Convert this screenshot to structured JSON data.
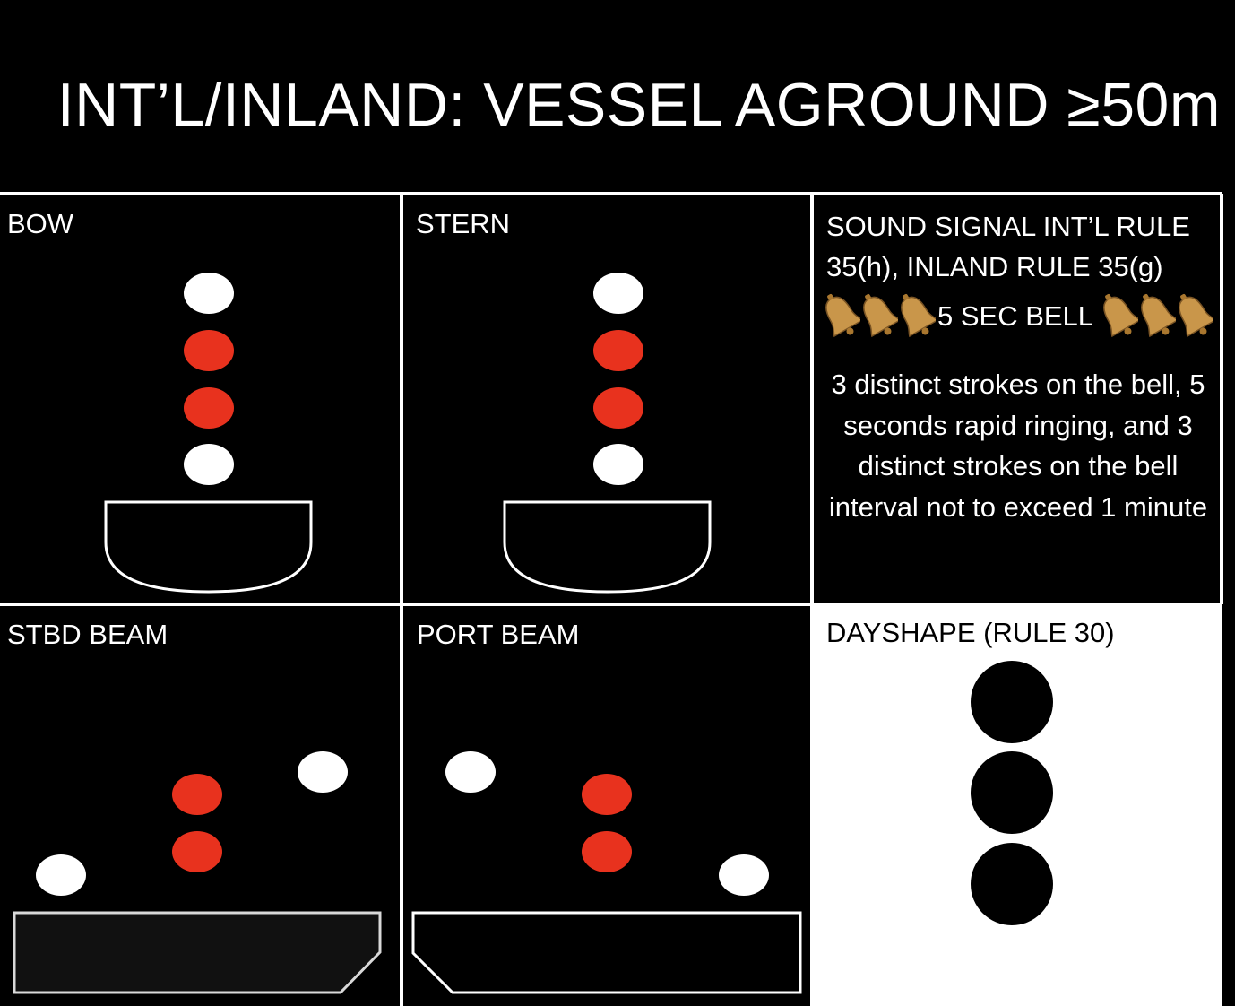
{
  "title": "INT’L/INLAND: VESSEL AGROUND ≥50m",
  "colors": {
    "background": "#000000",
    "white_light": "#ffffff",
    "red_light": "#e8321e",
    "panel_border": "#ffffff",
    "dayshape_panel": "#ffffff",
    "dayshape_ball": "#000000",
    "bell": "#c9964a"
  },
  "panels": {
    "bow": {
      "label": "BOW"
    },
    "stern": {
      "label": "STERN"
    },
    "stbd_beam": {
      "label": "STBD BEAM"
    },
    "port_beam": {
      "label": "PORT BEAM"
    }
  },
  "sound_signal": {
    "heading": "SOUND SIGNAL INT’L RULE 35(h), INLAND RULE 35(g)",
    "bell_label": "5 SEC BELL",
    "bell_icon": "bell-icon",
    "description": "3 distinct strokes on the bell, 5 seconds rapid ringing, and 3 distinct strokes on the bell interval not to exceed 1 minute"
  },
  "dayshape": {
    "label": "DAYSHAPE (RULE 30)",
    "ball_count": 3
  }
}
